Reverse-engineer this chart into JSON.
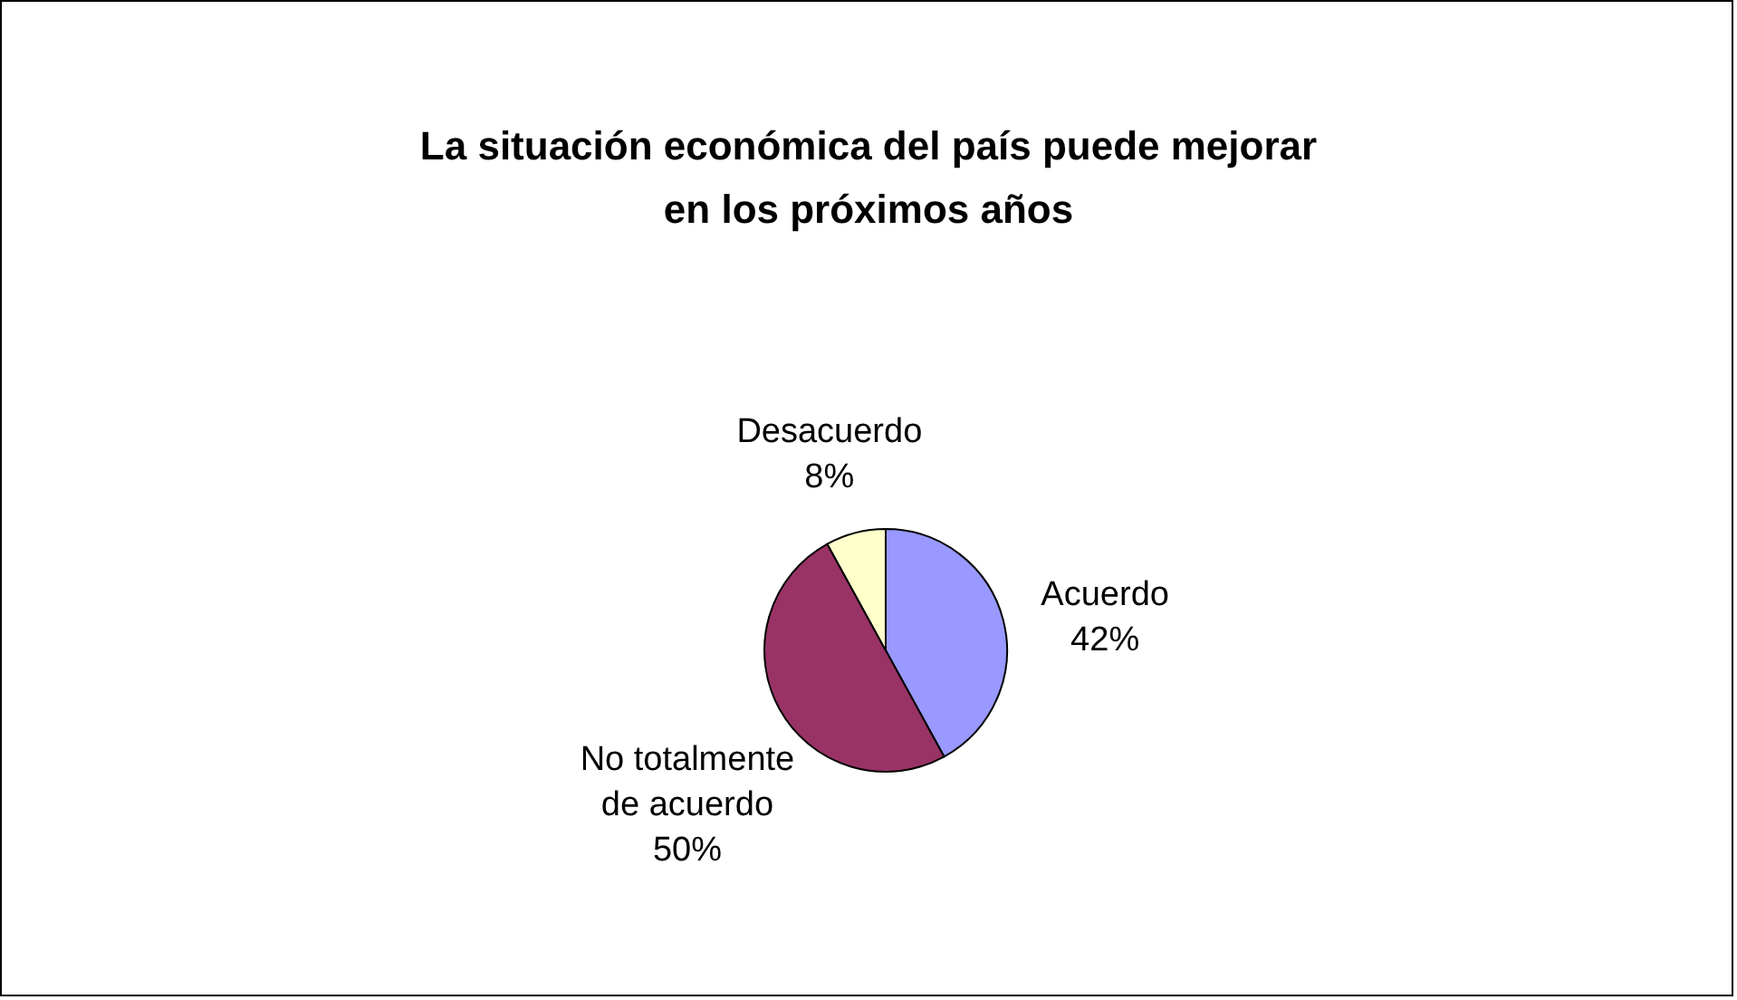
{
  "chart_data": {
    "type": "pie",
    "title": "La situación económica del país puede mejorar en los próximos  años",
    "categories": [
      "Acuerdo",
      "No totalmente de acuerdo",
      "Desacuerdo"
    ],
    "values": [
      42,
      50,
      8
    ],
    "value_labels": [
      "42%",
      "50%",
      "8%"
    ],
    "colors": [
      "#9999ff",
      "#993366",
      "#ffffcc"
    ],
    "legend": false
  }
}
